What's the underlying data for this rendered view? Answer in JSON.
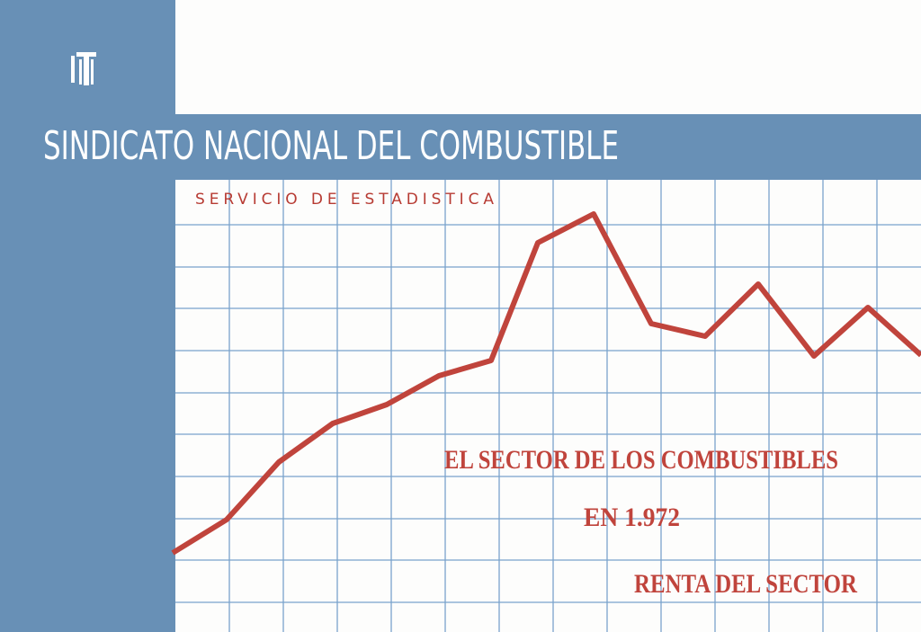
{
  "header": {
    "organization": "SINDICATO NACIONAL DEL COMBUSTIBLE",
    "service": "SERVICIO DE ESTADISTICA"
  },
  "title": {
    "lines": [
      "EL SECTOR DE LOS COMBUSTIBLES",
      "EN 1.972",
      "RENTA DEL SECTOR"
    ]
  }
}
